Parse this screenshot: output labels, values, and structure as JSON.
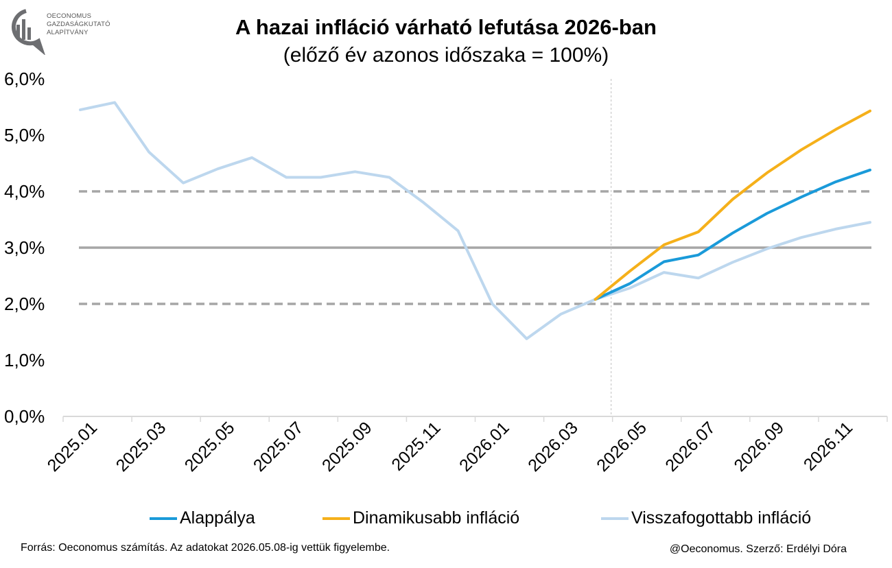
{
  "logo": {
    "lines": [
      "OECONOMUS",
      "GAZDASÁGKUTATÓ",
      "ALAPÍTVÁNY"
    ]
  },
  "colors": {
    "base": "#1a9ad9",
    "dynamic": "#f5b01a",
    "restrained": "#bdd7ee",
    "target": "#a6a6a6",
    "axis": "#d9d9d9"
  },
  "chart_data": {
    "type": "line",
    "title": "A hazai infláció várható lefutása 2026-ban",
    "subtitle": "(előző év azonos időszaka = 100%)",
    "x": [
      "2025.01",
      "2025.02",
      "2025.03",
      "2025.04",
      "2025.05",
      "2025.06",
      "2025.07",
      "2025.08",
      "2025.09",
      "2025.10",
      "2025.11",
      "2025.12",
      "2026.01",
      "2026.02",
      "2026.03",
      "2026.04",
      "2026.05",
      "2026.06",
      "2026.07",
      "2026.08",
      "2026.09",
      "2026.10",
      "2026.11",
      "2026.12"
    ],
    "x_tick_labels": [
      "2025.01",
      "2025.03",
      "2025.05",
      "2025.07",
      "2025.09",
      "2025.11",
      "2026.01",
      "2026.03",
      "2026.05",
      "2026.07",
      "2026.09",
      "2026.11"
    ],
    "y_ticks": [
      "0,0%",
      "1,0%",
      "2,0%",
      "3,0%",
      "4,0%",
      "5,0%",
      "6,0%"
    ],
    "ylim": [
      0,
      6
    ],
    "reference_lines": [
      {
        "value": 3.0,
        "style": "solid"
      },
      {
        "value": 2.0,
        "style": "dashed"
      },
      {
        "value": 4.0,
        "style": "dashed"
      }
    ],
    "forecast_divider_after": "2026.04",
    "series": [
      {
        "name": "Visszafogottabb infláció",
        "color_key": "restrained",
        "values": [
          5.45,
          5.58,
          4.7,
          4.15,
          4.4,
          4.6,
          4.25,
          4.25,
          4.35,
          4.25,
          3.8,
          3.3,
          2.0,
          1.38,
          1.82,
          2.08,
          2.28,
          2.56,
          2.46,
          2.74,
          2.98,
          3.18,
          3.33,
          3.45
        ]
      },
      {
        "name": "Alappálya",
        "color_key": "base",
        "values": [
          null,
          null,
          null,
          null,
          null,
          null,
          null,
          null,
          null,
          null,
          null,
          null,
          null,
          null,
          null,
          2.08,
          2.36,
          2.75,
          2.87,
          3.26,
          3.61,
          3.9,
          4.17,
          4.38
        ]
      },
      {
        "name": "Dinamikusabb infláció",
        "color_key": "dynamic",
        "values": [
          null,
          null,
          null,
          null,
          null,
          null,
          null,
          null,
          null,
          null,
          null,
          null,
          null,
          null,
          null,
          2.08,
          2.58,
          3.05,
          3.28,
          3.86,
          4.33,
          4.74,
          5.1,
          5.43
        ]
      }
    ],
    "legend": [
      "Alappálya",
      "Dinamikusabb infláció",
      "Visszafogottabb infláció"
    ]
  },
  "footer": {
    "source": "Forrás: Oeconomus számítás. Az adatokat 2026.05.08-ig vettük figyelembe.",
    "author": "@Oeconomus. Szerző: Erdélyi Dóra"
  }
}
